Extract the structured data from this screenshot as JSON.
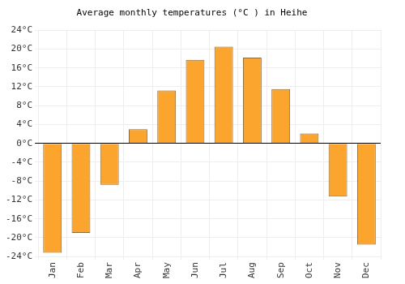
{
  "chart_data": {
    "type": "bar",
    "title": "Average monthly temperatures (°C ) in Heihe",
    "categories": [
      "Jan",
      "Feb",
      "Mar",
      "Apr",
      "May",
      "Jun",
      "Jul",
      "Aug",
      "Sep",
      "Oct",
      "Nov",
      "Dec"
    ],
    "values": [
      -23.2,
      -19.0,
      -8.8,
      3.0,
      11.2,
      17.7,
      20.5,
      18.2,
      11.5,
      2.1,
      -11.3,
      -21.5
    ],
    "color": "#fba52e",
    "ylim": [
      -24,
      24
    ],
    "yticks": [
      {
        "value": -24,
        "label": "-24°C"
      },
      {
        "value": -20,
        "label": "-20°C"
      },
      {
        "value": -16,
        "label": "-16°C"
      },
      {
        "value": -12,
        "label": "-12°C"
      },
      {
        "value": -8,
        "label": "-8°C"
      },
      {
        "value": -4,
        "label": "-4°C"
      },
      {
        "value": 0,
        "label": "0°C"
      },
      {
        "value": 4,
        "label": "4°C"
      },
      {
        "value": 8,
        "label": "8°C"
      },
      {
        "value": 12,
        "label": "12°C"
      },
      {
        "value": 16,
        "label": "16°C"
      },
      {
        "value": 20,
        "label": "20°C"
      },
      {
        "value": 24,
        "label": "24°C"
      }
    ],
    "grid": true
  }
}
